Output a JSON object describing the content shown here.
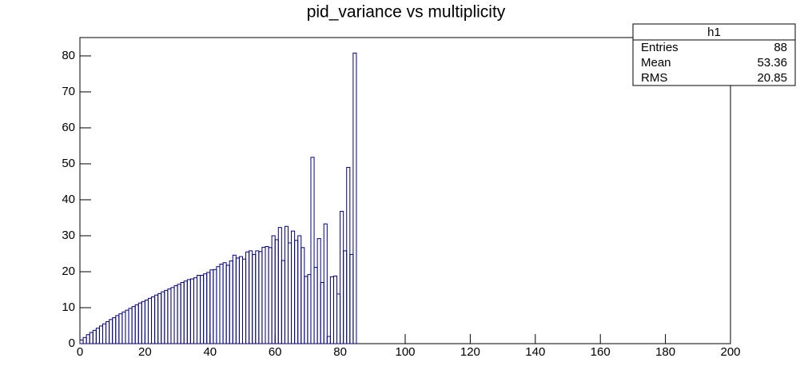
{
  "chart_data": {
    "type": "histogram",
    "title": "pid_variance vs multiplicity",
    "bins": [
      0,
      1,
      2,
      3,
      4,
      5,
      6,
      7,
      8,
      9,
      10,
      11,
      12,
      13,
      14,
      15,
      16,
      17,
      18,
      19,
      20,
      21,
      22,
      23,
      24,
      25,
      26,
      27,
      28,
      29,
      30,
      31,
      32,
      33,
      34,
      35,
      36,
      37,
      38,
      39,
      40,
      41,
      42,
      43,
      44,
      45,
      46,
      47,
      48,
      49,
      50,
      51,
      52,
      53,
      54,
      55,
      56,
      57,
      58,
      59,
      60,
      61,
      62,
      63,
      64,
      65,
      66,
      67,
      68,
      69,
      70,
      71,
      72,
      73,
      74,
      75,
      76,
      77,
      78,
      79,
      80,
      81,
      82,
      83,
      84,
      85
    ],
    "counts": [
      1.0,
      1.7,
      2.5,
      3.1,
      3.7,
      4.3,
      4.9,
      5.5,
      6.1,
      6.7,
      7.2,
      7.8,
      8.3,
      8.8,
      9.3,
      9.8,
      10.3,
      10.8,
      11.3,
      11.7,
      12.1,
      12.6,
      13.0,
      13.5,
      13.9,
      14.4,
      14.8,
      15.2,
      15.6,
      16.1,
      16.5,
      17.0,
      17.4,
      17.8,
      18.0,
      18.3,
      19.0,
      19.0,
      19.4,
      19.8,
      20.5,
      20.6,
      21.4,
      22.1,
      22.5,
      21.8,
      23.0,
      24.6,
      23.8,
      24.2,
      23.5,
      25.5,
      25.8,
      24.8,
      25.8,
      25.6,
      26.8,
      27.0,
      26.7,
      30.0,
      28.9,
      32.3,
      23.1,
      32.6,
      28.0,
      31.3,
      28.7,
      30.0,
      26.7,
      18.7,
      19.2,
      51.8,
      21.2,
      29.2,
      17.0,
      33.3,
      2.0,
      18.6,
      18.8,
      13.8,
      36.8,
      25.8,
      49.0,
      24.8,
      80.8
    ],
    "color": "#000080",
    "xlim": [
      0,
      200
    ],
    "xticks": [
      0,
      20,
      40,
      60,
      80,
      100,
      120,
      140,
      160,
      180,
      200
    ],
    "ylim": [
      0,
      85.1
    ],
    "yticks": [
      0,
      10,
      20,
      30,
      40,
      50,
      60,
      70,
      80
    ],
    "stats": {
      "title": "h1",
      "rows": [
        [
          "Entries",
          88
        ],
        [
          "Mean",
          53.36
        ],
        [
          "RMS",
          20.85
        ]
      ]
    }
  }
}
